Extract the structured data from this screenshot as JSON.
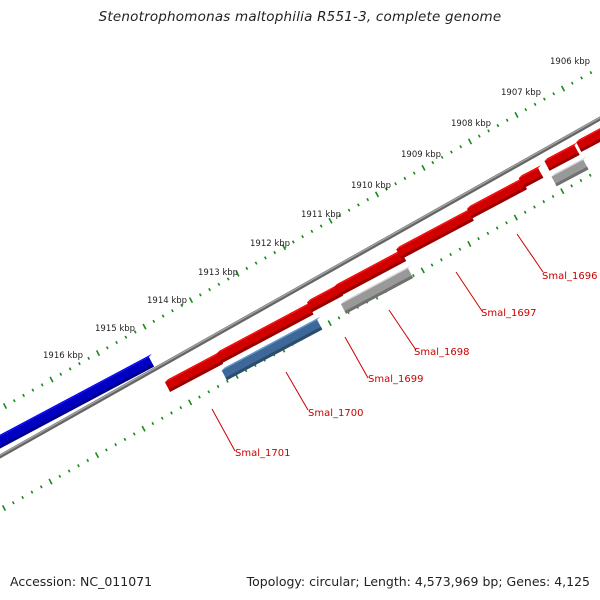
{
  "title": "Stenotrophomonas maltophilia R551-3, complete genome",
  "footer": {
    "accession": "Accession: NC_011071",
    "topology": "Topology: circular; Length: 4,573,969 bp; Genes: 4,125"
  },
  "ticks": [
    {
      "label": "1906 kbp",
      "kbp": 1906
    },
    {
      "label": "1907 kbp",
      "kbp": 1907
    },
    {
      "label": "1908 kbp",
      "kbp": 1908
    },
    {
      "label": "1909 kbp",
      "kbp": 1909
    },
    {
      "label": "1910 kbp",
      "kbp": 1910
    },
    {
      "label": "1911 kbp",
      "kbp": 1911
    },
    {
      "label": "1912 kbp",
      "kbp": 1912
    },
    {
      "label": "1913 kbp",
      "kbp": 1913
    },
    {
      "label": "1914 kbp",
      "kbp": 1914
    },
    {
      "label": "1915 kbp",
      "kbp": 1915
    },
    {
      "label": "1916 kbp",
      "kbp": 1916
    }
  ],
  "gene_labels": [
    {
      "label": "Smal_1696"
    },
    {
      "label": "Smal_1697"
    },
    {
      "label": "Smal_1698"
    },
    {
      "label": "Smal_1699"
    },
    {
      "label": "Smal_1700"
    },
    {
      "label": "Smal_1701"
    }
  ],
  "colors": {
    "forward_gene": "#ff0000",
    "reverse_gene": "#bbbbbb",
    "highlight_gene": "#4a7fb8",
    "other_feature": "#0000ee",
    "backbone": "#777777",
    "tick": "#1a8a1a",
    "gene_label": "#cc0000"
  }
}
